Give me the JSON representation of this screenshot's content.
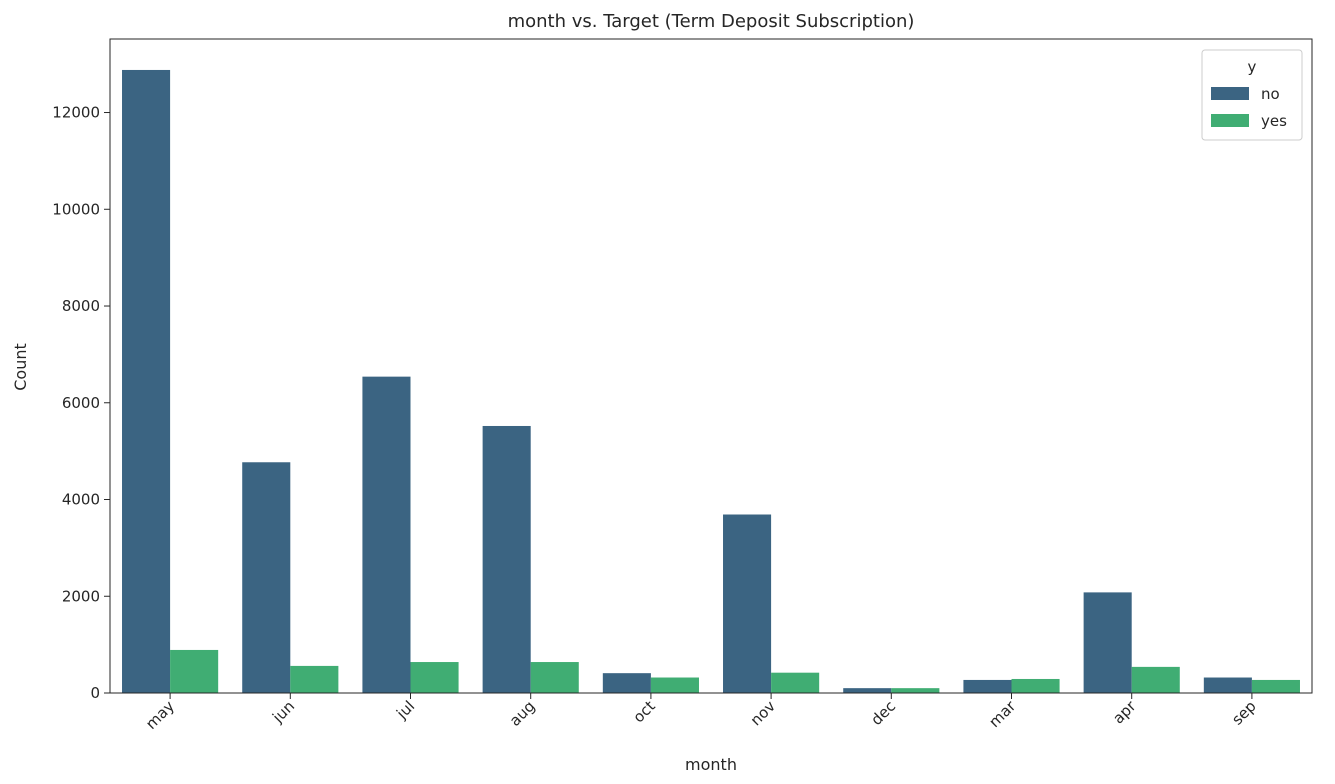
{
  "chart_data": {
    "type": "bar",
    "title": "month vs. Target (Term Deposit Subscription)",
    "xlabel": "month",
    "ylabel": "Count",
    "categories": [
      "may",
      "jun",
      "jul",
      "aug",
      "oct",
      "nov",
      "dec",
      "mar",
      "apr",
      "sep"
    ],
    "series": [
      {
        "name": "no",
        "color": "#3b6482",
        "values": [
          12880,
          4770,
          6540,
          5520,
          410,
          3690,
          100,
          270,
          2080,
          320
        ]
      },
      {
        "name": "yes",
        "color": "#40ad73",
        "values": [
          890,
          560,
          640,
          640,
          320,
          420,
          100,
          290,
          540,
          270
        ]
      }
    ],
    "ylim": [
      0,
      13520
    ],
    "yticks": [
      0,
      2000,
      4000,
      6000,
      8000,
      10000,
      12000
    ],
    "grid": false,
    "legend": {
      "title": "y",
      "placement": "top-right"
    }
  }
}
